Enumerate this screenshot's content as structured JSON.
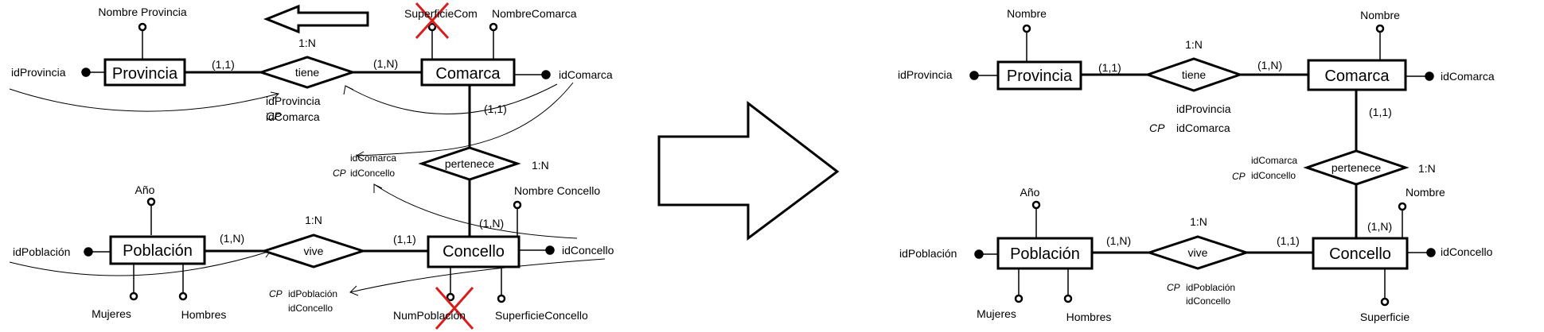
{
  "left": {
    "entities": {
      "provincia": "Provincia",
      "comarca": "Comarca",
      "poblacion": "Población",
      "concello": "Concello"
    },
    "relations": {
      "tiene": "tiene",
      "pertenece": "pertenece",
      "vive": "vive"
    },
    "attributes": {
      "nombre_provincia": "Nombre Provincia",
      "id_provincia": "idProvincia",
      "superficie_com": "SuperficieCom",
      "nombre_comarca": "NombreComarca",
      "id_comarca": "idComarca",
      "anio": "Año",
      "id_poblacion": "idPoblación",
      "mujeres": "Mujeres",
      "hombres": "Hombres",
      "nombre_concello": "Nombre Concello",
      "id_concello": "idConcello",
      "num_poblacion": "NumPoblación",
      "superficie_concello": "SuperficieConcello"
    },
    "cardinalities": {
      "tiene_type": "1:N",
      "provincia_tiene": "(1,1)",
      "tiene_comarca": "(1,N)",
      "comarca_pertenece": "(1,1)",
      "pertenece_type": "1:N",
      "pertenece_concello": "(1,N)",
      "vive_type": "1:N",
      "poblacion_vive": "(1,N)",
      "vive_concello": "(1,1)"
    },
    "keys": {
      "tiene_cp": "CP",
      "tiene_k1": "idProvincia",
      "tiene_k2": "idComarca",
      "pertenece_cp": "CP",
      "pertenece_k1": "idComarca",
      "pertenece_k2": "idConcello",
      "vive_cp": "CP",
      "vive_k1": "idPoblación",
      "vive_k2": "idConcello"
    }
  },
  "right": {
    "entities": {
      "provincia": "Provincia",
      "comarca": "Comarca",
      "poblacion": "Población",
      "concello": "Concello"
    },
    "relations": {
      "tiene": "tiene",
      "pertenece": "pertenece",
      "vive": "vive"
    },
    "attributes": {
      "nombre_provincia": "Nombre",
      "id_provincia": "idProvincia",
      "nombre_comarca": "Nombre",
      "id_comarca": "idComarca",
      "anio": "Año",
      "id_poblacion": "idPoblación",
      "mujeres": "Mujeres",
      "hombres": "Hombres",
      "nombre_concello": "Nombre",
      "id_concello": "idConcello",
      "superficie": "Superficie"
    },
    "cardinalities": {
      "tiene_type": "1:N",
      "provincia_tiene": "(1,1)",
      "tiene_comarca": "(1,N)",
      "comarca_pertenece": "(1,1)",
      "pertenece_type": "1:N",
      "pertenece_concello": "(1,N)",
      "vive_type": "1:N",
      "poblacion_vive": "(1,N)",
      "vive_concello": "(1,1)"
    },
    "keys": {
      "tiene_cp": "CP",
      "tiene_k1": "idProvincia",
      "tiene_k2": "idComarca",
      "pertenece_cp": "CP",
      "pertenece_k1": "idComarca",
      "pertenece_k2": "idConcello",
      "vive_cp": "CP",
      "vive_k1": "idPoblación",
      "vive_k2": "idConcello"
    }
  }
}
